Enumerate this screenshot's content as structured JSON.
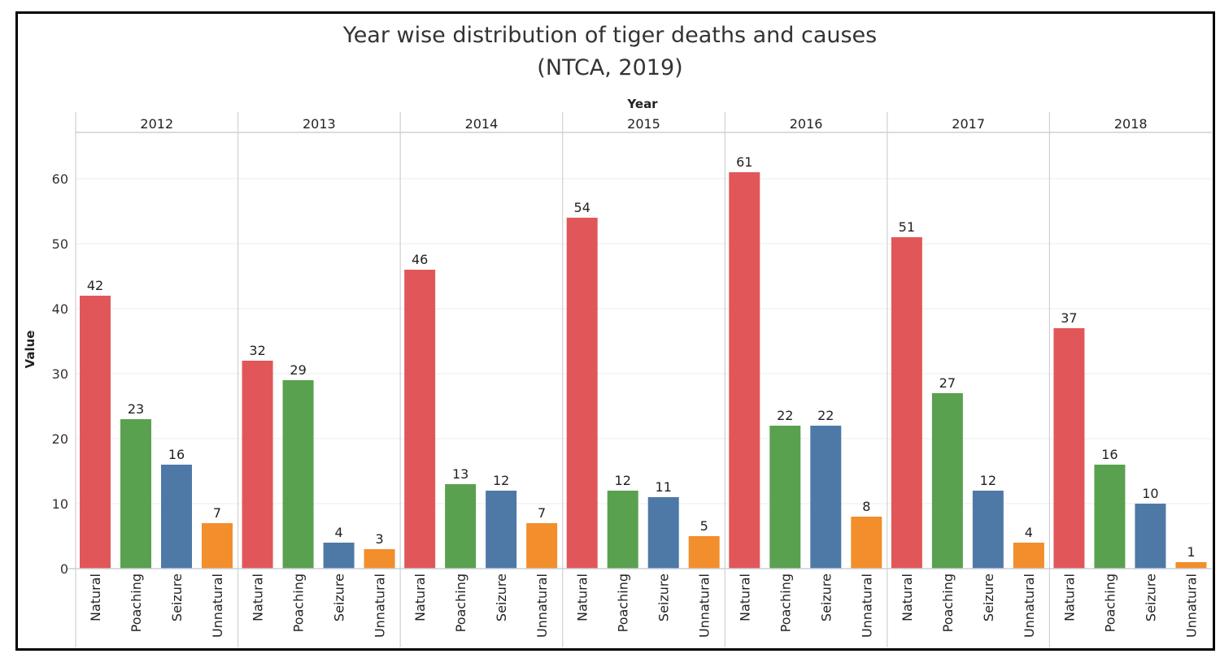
{
  "chart_data": {
    "type": "bar",
    "title": "Year wise distribution of tiger deaths and causes",
    "subtitle": "(NTCA, 2019)",
    "column_header": "Year",
    "ylabel": "Value",
    "ylim": [
      0,
      67
    ],
    "yticks": [
      0,
      10,
      20,
      30,
      40,
      50,
      60
    ],
    "grid": true,
    "legend": "none",
    "years": [
      "2012",
      "2013",
      "2014",
      "2015",
      "2016",
      "2017",
      "2018"
    ],
    "categories": [
      "Natural",
      "Poaching",
      "Seizure",
      "Unnatural"
    ],
    "colors": {
      "Natural": "#e15759",
      "Poaching": "#59a14f",
      "Seizure": "#4e79a7",
      "Unnatural": "#f28e2b"
    },
    "values": {
      "2012": [
        42,
        23,
        16,
        7
      ],
      "2013": [
        32,
        29,
        4,
        3
      ],
      "2014": [
        46,
        13,
        12,
        7
      ],
      "2015": [
        54,
        12,
        11,
        5
      ],
      "2016": [
        61,
        22,
        22,
        8
      ],
      "2017": [
        51,
        27,
        12,
        4
      ],
      "2018": [
        37,
        16,
        10,
        1
      ]
    }
  }
}
